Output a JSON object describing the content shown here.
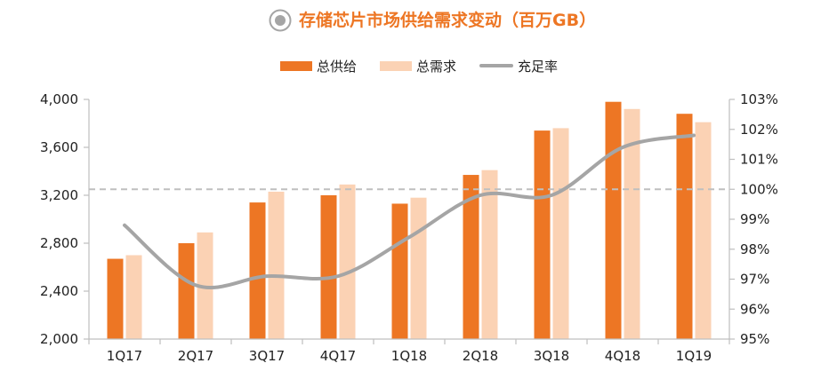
{
  "title": "存储芯片市场供给需求变动（百万GB）",
  "colors": {
    "supply": "#ED7624",
    "demand": "#FBD2B4",
    "ratio": "#A5A5A5",
    "title": "#ED7624",
    "axis": "#BFBFBF",
    "reference": "#BFBFBF"
  },
  "chart_data": {
    "type": "bar",
    "categories": [
      "1Q17",
      "2Q17",
      "3Q17",
      "4Q17",
      "1Q18",
      "2Q18",
      "3Q18",
      "4Q18",
      "1Q19"
    ],
    "series": [
      {
        "name": "总供给",
        "type": "bar",
        "axis": "left",
        "values": [
          2670,
          2800,
          3140,
          3200,
          3130,
          3370,
          3740,
          3980,
          3880
        ]
      },
      {
        "name": "总需求",
        "type": "bar",
        "axis": "left",
        "values": [
          2700,
          2890,
          3230,
          3290,
          3180,
          3410,
          3760,
          3920,
          3810
        ]
      },
      {
        "name": "充足率",
        "type": "line",
        "axis": "right",
        "values": [
          98.8,
          96.8,
          97.1,
          97.1,
          98.4,
          99.8,
          99.8,
          101.4,
          101.8
        ]
      }
    ],
    "left_axis": {
      "ylim": [
        2000,
        4000
      ],
      "ticks": [
        "2,000",
        "2,400",
        "2,800",
        "3,200",
        "3,600",
        "4,000"
      ]
    },
    "right_axis": {
      "ylim": [
        95,
        103
      ],
      "ticks": [
        "95%",
        "96%",
        "97%",
        "98%",
        "99%",
        "100%",
        "101%",
        "102%",
        "103%"
      ]
    },
    "reference_line": {
      "axis": "right",
      "value": 100
    },
    "grid": false,
    "legend_position": "top"
  }
}
